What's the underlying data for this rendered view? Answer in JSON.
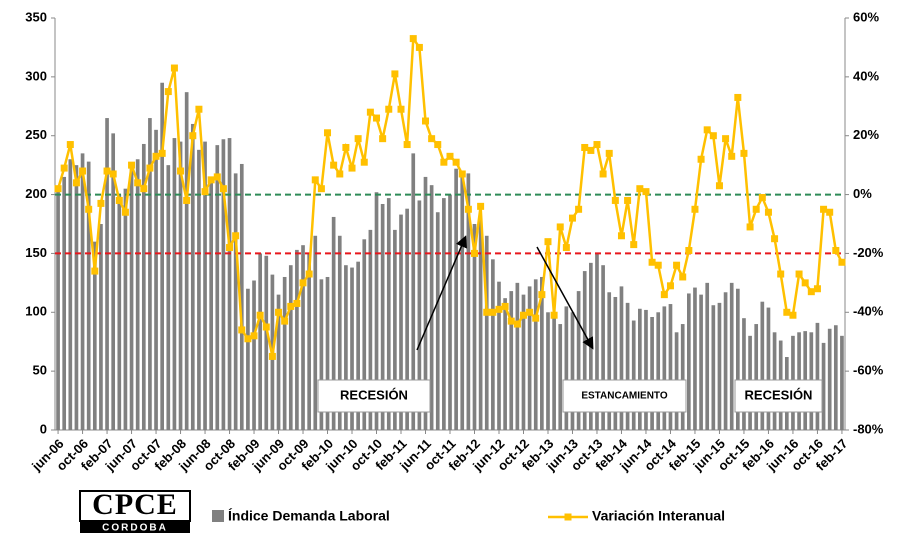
{
  "chart_data": {
    "type": "combo",
    "categories": [
      "jun-06",
      null,
      null,
      null,
      "oct-06",
      null,
      null,
      null,
      "feb-07",
      null,
      null,
      null,
      "jun-07",
      null,
      null,
      null,
      "oct-07",
      null,
      null,
      null,
      "feb-08",
      null,
      null,
      null,
      "jun-08",
      null,
      null,
      null,
      "oct-08",
      null,
      null,
      null,
      "feb-09",
      null,
      null,
      null,
      "jun-09",
      null,
      null,
      null,
      "oct-09",
      null,
      null,
      null,
      "feb-10",
      null,
      null,
      null,
      "jun-10",
      null,
      null,
      null,
      "oct-10",
      null,
      null,
      null,
      "feb-11",
      null,
      null,
      null,
      "jun-11",
      null,
      null,
      null,
      "oct-11",
      null,
      null,
      null,
      "feb-12",
      null,
      null,
      null,
      "jun-12",
      null,
      null,
      null,
      "oct-12",
      null,
      null,
      null,
      "feb-13",
      null,
      null,
      null,
      "jun-13",
      null,
      null,
      null,
      "oct-13",
      null,
      null,
      null,
      "feb-14",
      null,
      null,
      null,
      "jun-14",
      null,
      null,
      null,
      "oct-14",
      null,
      null,
      null,
      "feb-15",
      null,
      null,
      null,
      "jun-15",
      null,
      null,
      null,
      "oct-15",
      null,
      null,
      null,
      "feb-16",
      null,
      null,
      null,
      "jun-16",
      null,
      null,
      null,
      "oct-16",
      null,
      null,
      null,
      "feb-17"
    ],
    "series": [
      {
        "name": "Índice Demanda Laboral",
        "type": "bar",
        "color": "#808080",
        "values": [
          205,
          215,
          230,
          225,
          235,
          228,
          160,
          175,
          265,
          252,
          200,
          205,
          225,
          230,
          243,
          265,
          255,
          295,
          225,
          248,
          245,
          287,
          260,
          238,
          245,
          212,
          242,
          247,
          248,
          218,
          226,
          120,
          127,
          150,
          148,
          132,
          115,
          130,
          140,
          153,
          157,
          150,
          165,
          128,
          130,
          181,
          165,
          140,
          138,
          143,
          162,
          170,
          202,
          192,
          197,
          170,
          183,
          188,
          235,
          195,
          215,
          208,
          185,
          197,
          200,
          222,
          219,
          218,
          175,
          180,
          165,
          145,
          126,
          112,
          118,
          125,
          115,
          122,
          128,
          130,
          100,
          95,
          90,
          105,
          100,
          118,
          135,
          142,
          150,
          140,
          117,
          113,
          122,
          108,
          93,
          103,
          102,
          96,
          100,
          105,
          107,
          83,
          90,
          116,
          121,
          115,
          125,
          106,
          108,
          117,
          125,
          120,
          95,
          80,
          90,
          109,
          104,
          83,
          76,
          62,
          80,
          83,
          84,
          83,
          91,
          74,
          86,
          89,
          80
        ]
      },
      {
        "name": "Variación Interanual",
        "type": "line",
        "color": "#FFC000",
        "axis": "y2",
        "values": [
          2,
          9,
          17,
          4,
          8,
          -5,
          -26,
          -3,
          8,
          7,
          -2,
          -6,
          10,
          4,
          2,
          9,
          13,
          14,
          35,
          43,
          8,
          -2,
          20,
          29,
          1,
          5,
          6,
          2,
          -18,
          -14,
          -46,
          -49,
          -48,
          -41,
          -45,
          -55,
          -40,
          -43,
          -38,
          -37,
          -30,
          -27,
          5,
          2,
          21,
          10,
          7,
          16,
          9,
          19,
          11,
          28,
          26,
          19,
          29,
          41,
          29,
          17,
          53,
          50,
          25,
          19,
          17,
          11,
          13,
          11,
          7,
          -5,
          -20,
          -4,
          -40,
          -40,
          -39,
          -38,
          -43,
          -44,
          -41,
          -40,
          -42,
          -34,
          -16,
          -41,
          -11,
          -18,
          -8,
          -5,
          16,
          15,
          17,
          7,
          14,
          -2,
          -14,
          -2,
          -17,
          2,
          1,
          -23,
          -24,
          -34,
          -31,
          -24,
          -28,
          -19,
          -5,
          12,
          22,
          20,
          3,
          19,
          13,
          33,
          14,
          -11,
          -5,
          -1,
          -6,
          -15,
          -27,
          -40,
          -41,
          -27,
          -30,
          -33,
          -32,
          -5,
          -6,
          -19,
          -23
        ]
      }
    ],
    "ylim": [
      0,
      350
    ],
    "yticks": [
      0,
      50,
      100,
      150,
      200,
      250,
      300,
      350
    ],
    "y2lim": [
      -80,
      60
    ],
    "y2ticks": [
      {
        "value": -80,
        "label": "-80%"
      },
      {
        "value": -60,
        "label": "-60%"
      },
      {
        "value": -40,
        "label": "-40%"
      },
      {
        "value": -20,
        "label": "-20%"
      },
      {
        "value": 0,
        "label": "0%"
      },
      {
        "value": 20,
        "label": "20%"
      },
      {
        "value": 40,
        "label": "40%"
      },
      {
        "value": 60,
        "label": "60%"
      }
    ],
    "reference_lines": [
      {
        "value": 0,
        "axis": "y2",
        "color": "#2e8b57"
      },
      {
        "value": -20,
        "axis": "y2",
        "color": "#e8171c"
      }
    ],
    "annotations": [
      "RECESIÓN",
      "ESTANCAMIENTO",
      "RECESIÓN"
    ],
    "logo": [
      "CPCE",
      "CORDOBA"
    ],
    "legend": "bottom"
  }
}
